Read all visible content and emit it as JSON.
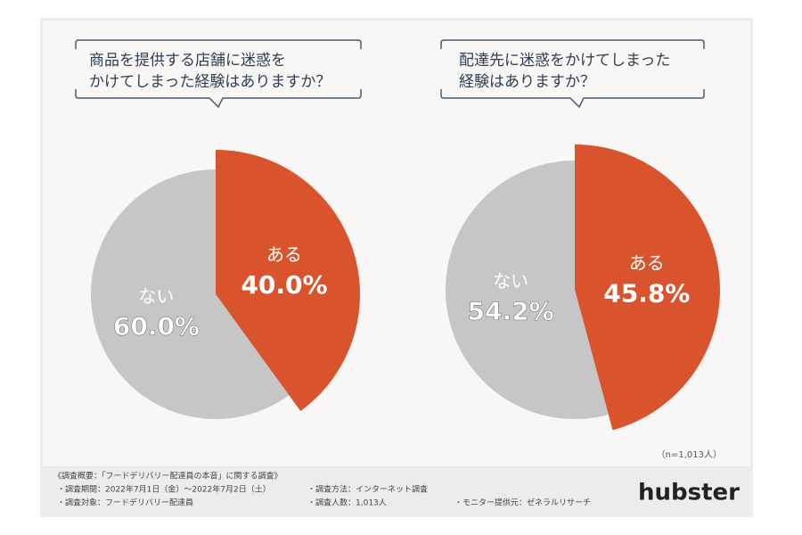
{
  "chart_data": [
    {
      "type": "pie",
      "title": [
        "商品を提供する店舗に迷惑を",
        "かけてしまった経験はありますか？"
      ],
      "categories": [
        "ある",
        "ない"
      ],
      "values": [
        40.0,
        60.0
      ],
      "value_labels": [
        "40.0%",
        "60.0%"
      ],
      "colors": [
        "#d9542c",
        "#c6c6c6"
      ]
    },
    {
      "type": "pie",
      "title": [
        "配達先に迷惑をかけてしまった",
        "経験はありますか？"
      ],
      "categories": [
        "ある",
        "ない"
      ],
      "values": [
        45.8,
        54.2
      ],
      "value_labels": [
        "45.8%",
        "54.2%"
      ],
      "colors": [
        "#d9542c",
        "#c6c6c6"
      ]
    }
  ],
  "sample_note": "（n=1,013人）",
  "survey": {
    "heading": "《調査概要：「フードデリバリー配達員の本音」に関する調査》",
    "items": [
      "・調査期間：2022年7月1日（金）～2022年7月2日（土）",
      "・調査方法：インターネット調査",
      "・調査対象：フードデリバリー配達員",
      "・調査人数：1,013人",
      "・モニター提供元：ゼネラルリサーチ"
    ]
  },
  "logo": "hubster"
}
